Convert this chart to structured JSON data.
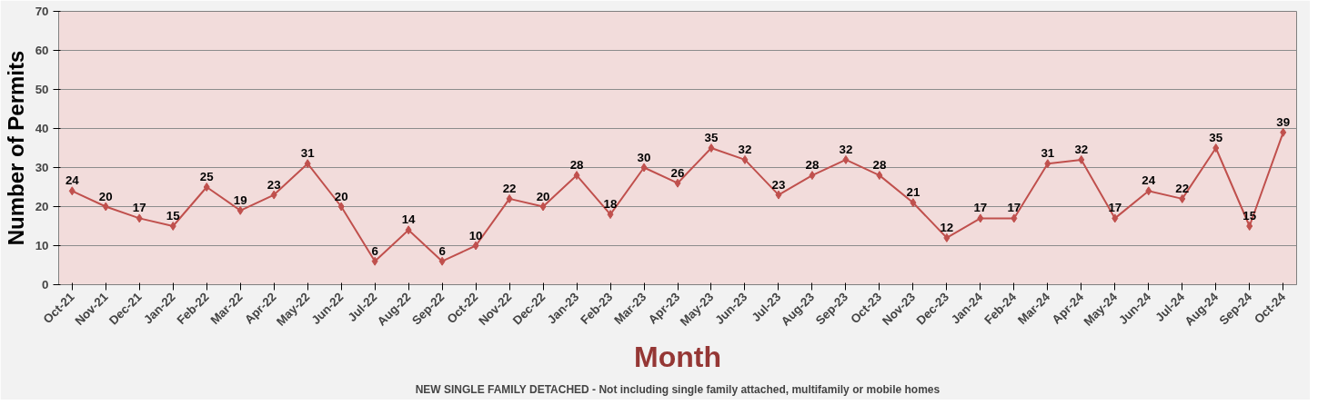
{
  "chart_data": {
    "type": "line",
    "xlabel": "Month",
    "ylabel": "Number of Permits",
    "categories": [
      "Oct-21",
      "Nov-21",
      "Dec-21",
      "Jan-22",
      "Feb-22",
      "Mar-22",
      "Apr-22",
      "May-22",
      "Jun-22",
      "Jul-22",
      "Aug-22",
      "Sep-22",
      "Oct-22",
      "Nov-22",
      "Dec-22",
      "Jan-23",
      "Feb-23",
      "Mar-23",
      "Apr-23",
      "May-23",
      "Jun-23",
      "Jul-23",
      "Aug-23",
      "Sep-23",
      "Oct-23",
      "Nov-23",
      "Dec-23",
      "Jan-24",
      "Feb-24",
      "Mar-24",
      "Apr-24",
      "May-24",
      "Jun-24",
      "Jul-24",
      "Aug-24",
      "Sep-24",
      "Oct-24"
    ],
    "series": [
      {
        "color": "#c0504d",
        "values": [
          24,
          20,
          17,
          15,
          25,
          19,
          23,
          31,
          20,
          6,
          14,
          6,
          10,
          22,
          20,
          28,
          18,
          30,
          26,
          35,
          32,
          23,
          28,
          32,
          28,
          21,
          12,
          17,
          17,
          31,
          32,
          17,
          24,
          22,
          35,
          15,
          39
        ]
      }
    ],
    "ylim": [
      0,
      70
    ],
    "yticks": [
      0,
      10,
      20,
      30,
      40,
      50,
      60,
      70
    ],
    "grid": "y",
    "marker": "diamond",
    "line_style": "solid",
    "data_labels": true,
    "annotations": [
      "NEW SINGLE FAMILY DETACHED - Not including single family attached, multifamily or mobile homes"
    ]
  }
}
